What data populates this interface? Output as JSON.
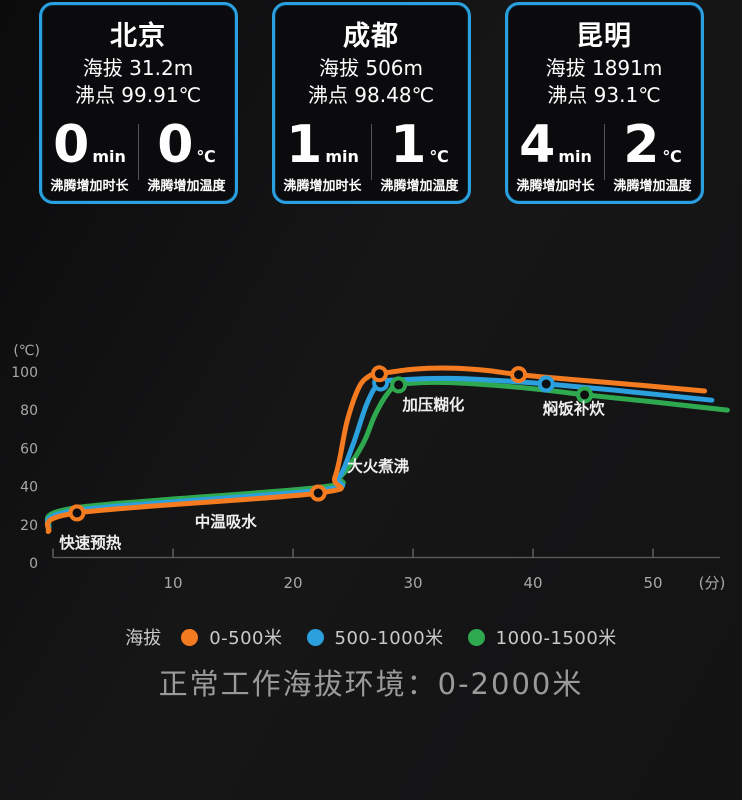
{
  "cards": [
    {
      "city": "北京",
      "altitude": "海拔 31.2m",
      "boiling": "沸点 99.91℃",
      "time_value": "0",
      "time_unit": "min",
      "time_caption": "沸腾增加时长",
      "temp_value": "0",
      "temp_unit": "℃",
      "temp_caption": "沸腾增加温度"
    },
    {
      "city": "成都",
      "altitude": "海拔 506m",
      "boiling": "沸点 98.48℃",
      "time_value": "1",
      "time_unit": "min",
      "time_caption": "沸腾增加时长",
      "temp_value": "1",
      "temp_unit": "℃",
      "temp_caption": "沸腾增加温度"
    },
    {
      "city": "昆明",
      "altitude": "海拔 1891m",
      "boiling": "沸点 93.1℃",
      "time_value": "4",
      "time_unit": "min",
      "time_caption": "沸腾增加时长",
      "temp_value": "2",
      "temp_unit": "℃",
      "temp_caption": "沸腾增加温度"
    }
  ],
  "chart_data": {
    "type": "line",
    "xlabel": "(分)",
    "ylabel": "(℃)",
    "x_ticks": [
      10,
      20,
      30,
      40,
      50
    ],
    "y_ticks": [
      0,
      20,
      40,
      60,
      80,
      100
    ],
    "xlim": [
      0,
      56
    ],
    "ylim": [
      0,
      110
    ],
    "grid": false,
    "legend_position": "bottom",
    "series": [
      {
        "name": "1000-1500米",
        "color": "#2fa950",
        "points": [
          [
            -0.4,
            19.5
          ],
          [
            2,
            29
          ],
          [
            22.1,
            39.5
          ],
          [
            24,
            45.5
          ],
          [
            25.8,
            62
          ],
          [
            26.8,
            77
          ],
          [
            27.8,
            88
          ],
          [
            28.8,
            93.2
          ],
          [
            31.5,
            94.5
          ],
          [
            34.5,
            94
          ],
          [
            40,
            91.2
          ],
          [
            44.3,
            88
          ],
          [
            50,
            84.3
          ],
          [
            56.2,
            80
          ]
        ],
        "markers": [
          [
            28.8,
            93.2
          ],
          [
            44.3,
            88
          ]
        ]
      },
      {
        "name": "500-1000米",
        "color": "#2c9fdd",
        "points": [
          [
            -0.4,
            18
          ],
          [
            2,
            27.6
          ],
          [
            22.1,
            38
          ],
          [
            23.8,
            44.5
          ],
          [
            25,
            62
          ],
          [
            26.2,
            84
          ],
          [
            27.3,
            94.2
          ],
          [
            29.5,
            96
          ],
          [
            33,
            96.6
          ],
          [
            36.5,
            95.7
          ],
          [
            41.1,
            93.7
          ],
          [
            47,
            90.3
          ],
          [
            54.9,
            85.2
          ]
        ],
        "markers": [
          [
            27.3,
            94.2
          ],
          [
            41.1,
            93.7
          ]
        ]
      },
      {
        "name": "0-500米",
        "color": "#f57b21",
        "points": [
          [
            -0.4,
            16.5
          ],
          [
            2,
            26.2
          ],
          [
            22.1,
            36.6
          ],
          [
            23.5,
            45
          ],
          [
            24.5,
            74
          ],
          [
            25.5,
            92
          ],
          [
            26.4,
            98
          ],
          [
            27.2,
            99
          ],
          [
            30,
            101.4
          ],
          [
            33,
            102
          ],
          [
            36,
            100.9
          ],
          [
            38.8,
            98.6
          ],
          [
            43,
            96.2
          ],
          [
            49,
            93
          ],
          [
            54.3,
            90
          ]
        ],
        "markers": [
          [
            2,
            26.2
          ],
          [
            22.1,
            36.6
          ],
          [
            27.2,
            99
          ],
          [
            38.8,
            98.6
          ]
        ]
      }
    ],
    "annotations": [
      {
        "text": "快速预热",
        "x": 3.1,
        "y": 10.5
      },
      {
        "text": "中温吸水",
        "x": 14.4,
        "y": 21.5
      },
      {
        "text": "大火煮沸",
        "x": 27.1,
        "y": 50.5
      },
      {
        "text": "加压糊化",
        "x": 31.7,
        "y": 82.7
      },
      {
        "text": "焖饭补炊",
        "x": 43.4,
        "y": 80.6
      }
    ]
  },
  "legend": {
    "title": "海拔",
    "items": [
      {
        "label": "0-500米",
        "color": "#f57b21"
      },
      {
        "label": "500-1000米",
        "color": "#2c9fdd"
      },
      {
        "label": "1000-1500米",
        "color": "#2fa950"
      }
    ]
  },
  "footer": {
    "note": "正常工作海拔环境：0-2000米"
  }
}
